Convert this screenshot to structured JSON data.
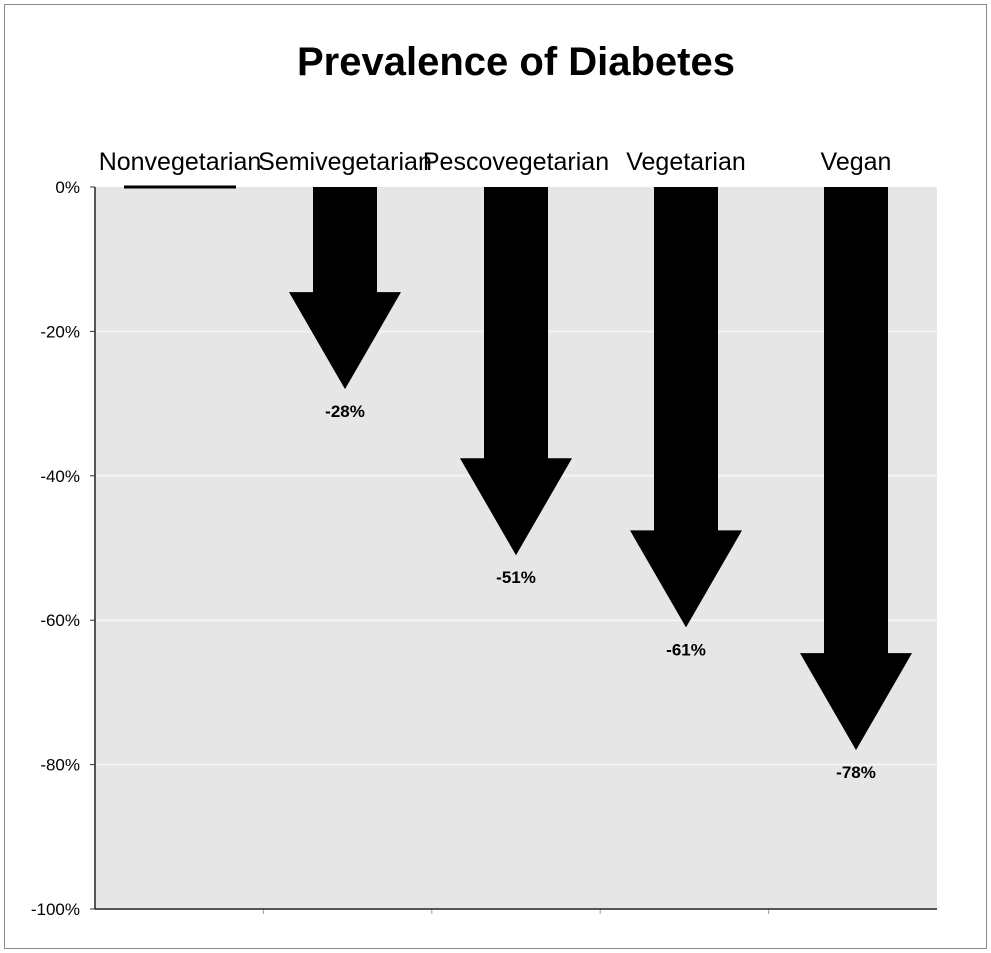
{
  "chart_data": {
    "type": "bar",
    "title": "Prevalence of Diabetes",
    "categories": [
      "Nonvegetarian",
      "Semivegetarian",
      "Pescovegetarian",
      "Vegetarian",
      "Vegan"
    ],
    "values": [
      0,
      -28,
      -51,
      -61,
      -78
    ],
    "value_labels": [
      "",
      "-28%",
      "-51%",
      "-61%",
      "-78%"
    ],
    "ylim": [
      -100,
      0
    ],
    "yticks": [
      0,
      -20,
      -40,
      -60,
      -80,
      -100
    ],
    "ytick_labels": [
      "0%",
      "-20%",
      "-40%",
      "-60%",
      "-80%",
      "-100%"
    ],
    "xlabel": "",
    "ylabel": "",
    "grid": true,
    "colors": {
      "plot_bg": "#e6e6e6",
      "arrow": "#000000",
      "grid": "#f4f4f4"
    }
  }
}
